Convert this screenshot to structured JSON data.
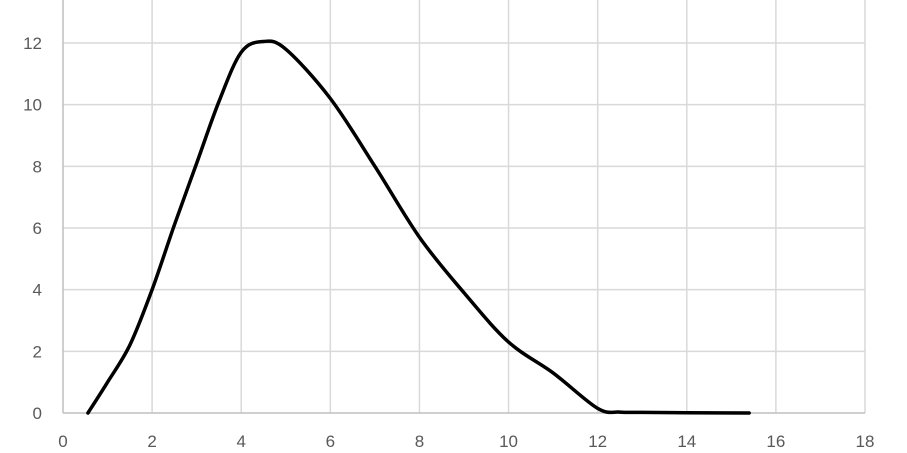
{
  "chart_data": {
    "type": "line",
    "title": "",
    "xlabel": "",
    "ylabel": "",
    "xlim": [
      0,
      18
    ],
    "ylim": [
      0,
      13.4
    ],
    "x_ticks": [
      "0",
      "2",
      "4",
      "6",
      "8",
      "10",
      "12",
      "14",
      "16",
      "18"
    ],
    "y_ticks": [
      "0",
      "2",
      "4",
      "6",
      "8",
      "10",
      "12"
    ],
    "grid": true,
    "legend": "none",
    "line_color": "#000000",
    "grid_color": "#d9d9d9",
    "series": [
      {
        "x": [
          0.56,
          1.0,
          1.5,
          2.0,
          2.5,
          3.0,
          3.5,
          4.0,
          4.5,
          5.0,
          6.0,
          7.0,
          8.0,
          9.0,
          10.0,
          11.0,
          12.0,
          12.5,
          13.0,
          14.0,
          15.4
        ],
        "y": [
          0,
          1.0,
          2.2,
          4.0,
          6.1,
          8.1,
          10.1,
          11.7,
          12.05,
          11.8,
          10.2,
          8.0,
          5.7,
          3.9,
          2.3,
          1.3,
          0.15,
          0.03,
          0.02,
          0.01,
          0
        ]
      }
    ]
  }
}
